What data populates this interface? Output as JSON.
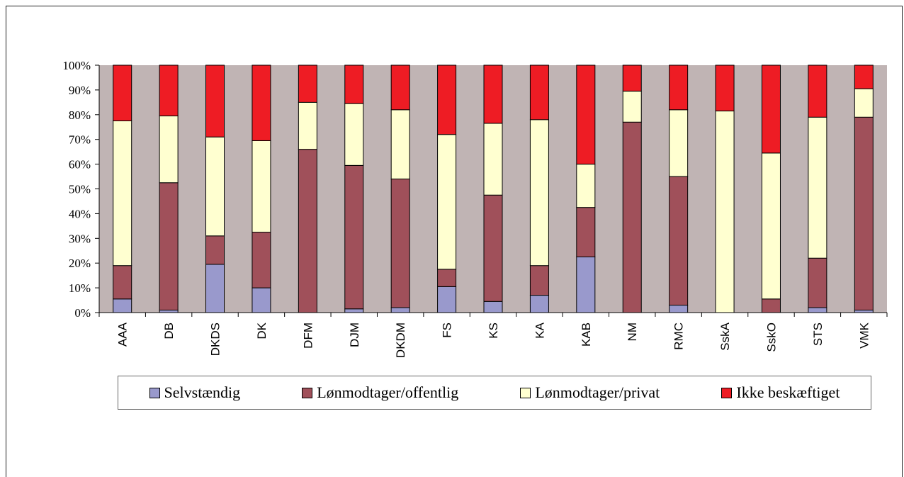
{
  "chart_data": {
    "type": "bar",
    "stacked": true,
    "percent": true,
    "categories": [
      "AAA",
      "DB",
      "DKDS",
      "DK",
      "DFM",
      "DJM",
      "DKDM",
      "FS",
      "KS",
      "KA",
      "KAB",
      "NM",
      "RMC",
      "SskA",
      "SskO",
      "STS",
      "VMK"
    ],
    "series": [
      {
        "name": "Selvstændig",
        "color": "#9999cc",
        "values": [
          5.5,
          1,
          19.5,
          10,
          0,
          1.5,
          2,
          10.5,
          4.5,
          7,
          22.5,
          0,
          3,
          0,
          0,
          2,
          1
        ]
      },
      {
        "name": "Lønmodtager/offentlig",
        "color": "#a0505a",
        "values": [
          13.5,
          51.5,
          11.5,
          22.5,
          66,
          58,
          52,
          7,
          43,
          12,
          20,
          77,
          52,
          0,
          5.5,
          20,
          78
        ]
      },
      {
        "name": "Lønmodtager/privat",
        "color": "#ffffd0",
        "values": [
          58.5,
          27,
          40,
          37,
          19,
          25,
          28,
          54.5,
          29,
          59,
          17.5,
          12.5,
          27,
          81.5,
          59,
          57,
          11.5
        ]
      },
      {
        "name": "Ikke beskæftiget",
        "color": "#ee1c24",
        "values": [
          22.5,
          20.5,
          29,
          30.5,
          15,
          15.5,
          18,
          28,
          23.5,
          22,
          40,
          10.5,
          18,
          18.5,
          35.5,
          21,
          9.5
        ]
      }
    ],
    "yticks": [
      "0%",
      "10%",
      "20%",
      "30%",
      "40%",
      "50%",
      "60%",
      "70%",
      "80%",
      "90%",
      "100%"
    ],
    "ylim": [
      0,
      100
    ],
    "plot_background": "#c0b4b4",
    "legend_position": "bottom"
  }
}
